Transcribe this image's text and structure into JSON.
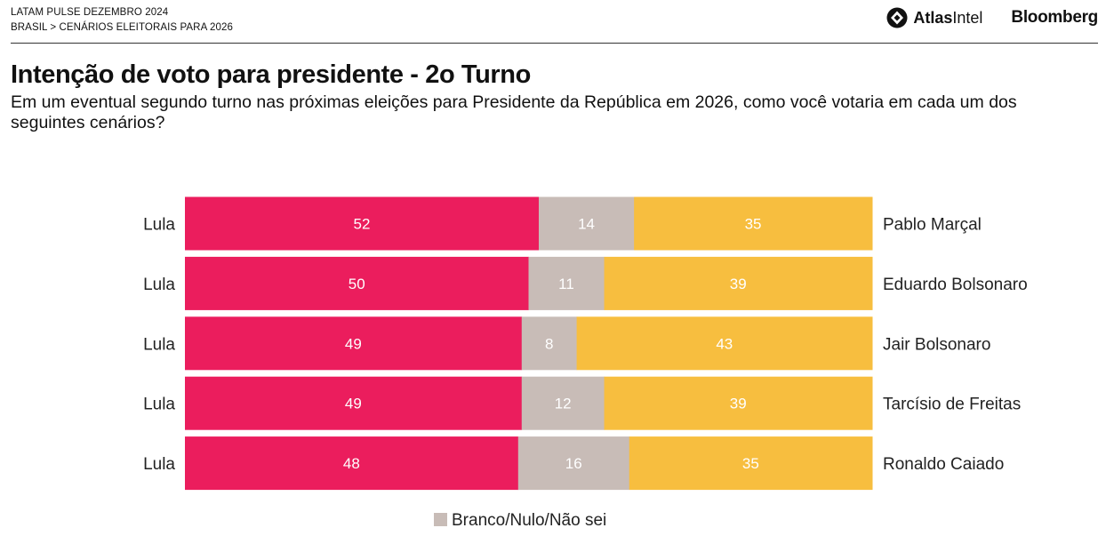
{
  "header": {
    "line1": "LATAM PULSE DEZEMBRO 2024",
    "line2": "BRASIL > CENÁRIOS ELEITORAIS PARA 2026",
    "atlas_bold": "Atlas",
    "atlas_regular": "Intel",
    "bloomberg": "Bloomberg"
  },
  "colors": {
    "lula": "#eb1d5d",
    "neutral": "#c8bcb7",
    "opponent": "#f7be3f"
  },
  "chart_data": {
    "type": "bar",
    "orientation": "horizontal",
    "stacked": true,
    "title": "Intenção de voto para presidente - 2o Turno",
    "subtitle": "Em um eventual segundo turno nas próximas eleições para Presidente da República em 2026, como você votaria em cada um dos seguintes cenários?",
    "rows": [
      {
        "left": "Lula",
        "right": "Pablo Marçal",
        "values": [
          52,
          14,
          35
        ]
      },
      {
        "left": "Lula",
        "right": "Eduardo Bolsonaro",
        "values": [
          50,
          11,
          39
        ]
      },
      {
        "left": "Lula",
        "right": "Jair Bolsonaro",
        "values": [
          49,
          8,
          43
        ]
      },
      {
        "left": "Lula",
        "right": "Tarcísio de Freitas",
        "values": [
          49,
          12,
          39
        ]
      },
      {
        "left": "Lula",
        "right": "Ronaldo Caiado",
        "values": [
          48,
          16,
          35
        ]
      }
    ],
    "legend": [
      "Branco/Nulo/Não sei"
    ],
    "legend_position": "bottom-center"
  }
}
